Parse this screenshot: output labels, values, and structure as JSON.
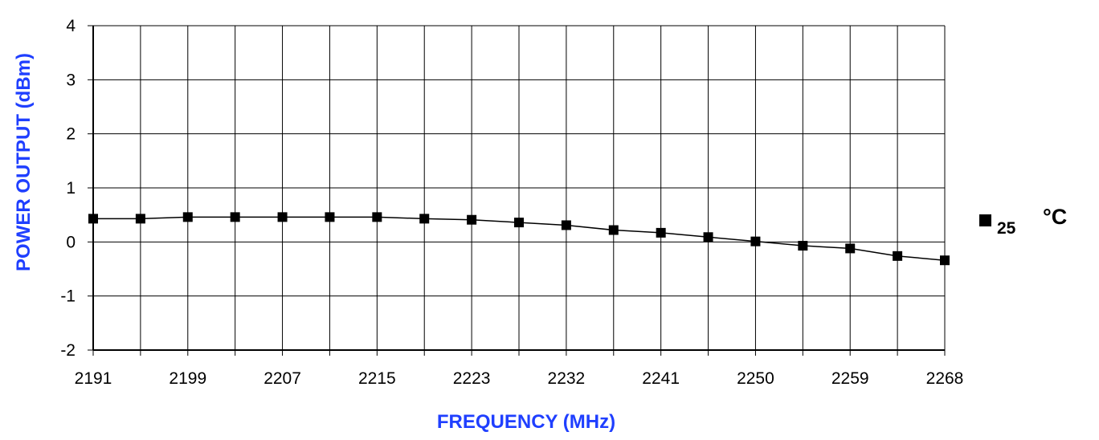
{
  "chart_data": {
    "type": "line",
    "title": "",
    "xlabel": "FREQUENCY (MHz)",
    "ylabel": "POWER OUTPUT (dBm)",
    "ylim": [
      -2,
      4
    ],
    "y_ticks": [
      "4",
      "3",
      "2",
      "1",
      "0",
      "-1",
      "-2"
    ],
    "y_tick_values": [
      4,
      3,
      2,
      1,
      0,
      -1,
      -2
    ],
    "categories": [
      "2191",
      "",
      "2199",
      "",
      "2207",
      "",
      "2215",
      "",
      "2223",
      "",
      "2232",
      "",
      "2241",
      "",
      "2250",
      "",
      "2259",
      "",
      "2268"
    ],
    "grid": true,
    "legend_position": "right",
    "label_color": "#1f3fff",
    "series": [
      {
        "name": "25 °C",
        "marker": "square",
        "color": "#000000",
        "values": [
          0.43,
          0.43,
          0.46,
          0.46,
          0.46,
          0.46,
          0.46,
          0.43,
          0.41,
          0.36,
          0.31,
          0.22,
          0.17,
          0.09,
          0.01,
          -0.07,
          -0.12,
          -0.26,
          -0.34
        ]
      }
    ],
    "legend": {
      "value": "25",
      "unit": "°C"
    }
  }
}
